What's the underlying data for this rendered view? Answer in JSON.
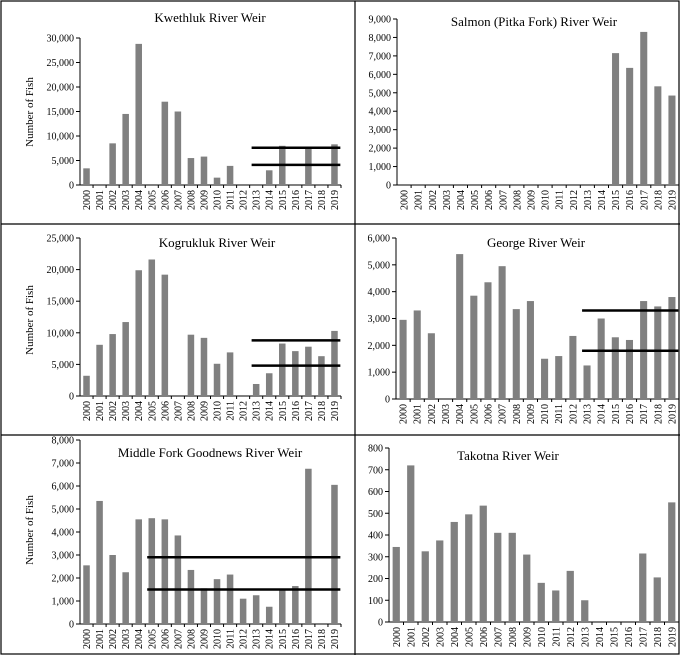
{
  "colors": {
    "bar": "#808080",
    "threshold": "#000000",
    "border": "#000000"
  },
  "years": [
    "2000",
    "2001",
    "2002",
    "2003",
    "2004",
    "2005",
    "2006",
    "2007",
    "2008",
    "2009",
    "2010",
    "2011",
    "2012",
    "2013",
    "2014",
    "2015",
    "2016",
    "2017",
    "2018",
    "2019"
  ],
  "chart_data": [
    {
      "type": "bar",
      "title": "Kwethluk River Weir",
      "ylabel": "Number of Fish",
      "ylim": [
        0,
        30000
      ],
      "yticks": [
        0,
        5000,
        10000,
        15000,
        20000,
        25000,
        30000
      ],
      "ytick_labels": [
        "0",
        "5,000",
        "10,000",
        "15,000",
        "20,000",
        "25,000",
        "30,000"
      ],
      "values": [
        3400,
        null,
        8500,
        14500,
        28800,
        null,
        17000,
        15000,
        5500,
        5800,
        1500,
        3900,
        null,
        null,
        3000,
        8000,
        null,
        7800,
        null,
        8300
      ],
      "thresholds": [
        {
          "value": 7600,
          "from": "2013",
          "to": "2019"
        },
        {
          "value": 4100,
          "from": "2013",
          "to": "2019"
        }
      ]
    },
    {
      "type": "bar",
      "title": "Salmon (Pitka Fork) River Weir",
      "ylabel": "",
      "ylim": [
        0,
        9000
      ],
      "yticks": [
        0,
        1000,
        2000,
        3000,
        4000,
        5000,
        6000,
        7000,
        8000,
        9000
      ],
      "ytick_labels": [
        "0",
        "1,000",
        "2,000",
        "3,000",
        "4,000",
        "5,000",
        "6,000",
        "7,000",
        "8,000",
        "9,000"
      ],
      "values": [
        null,
        null,
        null,
        null,
        null,
        null,
        null,
        null,
        null,
        null,
        null,
        null,
        null,
        null,
        null,
        7150,
        6350,
        8300,
        5350,
        4850
      ],
      "thresholds": []
    },
    {
      "type": "bar",
      "title": "Kogrukluk River Weir",
      "ylabel": "Number of Fish",
      "ylim": [
        0,
        25000
      ],
      "yticks": [
        0,
        5000,
        10000,
        15000,
        20000,
        25000
      ],
      "ytick_labels": [
        "0",
        "5,000",
        "10,000",
        "15,000",
        "20,000",
        "25,000"
      ],
      "values": [
        3200,
        8100,
        9800,
        11700,
        19900,
        21600,
        19200,
        null,
        9700,
        9200,
        5100,
        6900,
        null,
        1900,
        3600,
        8300,
        7100,
        7800,
        6300,
        10300
      ],
      "thresholds": [
        {
          "value": 8800,
          "from": "2013",
          "to": "2019"
        },
        {
          "value": 4800,
          "from": "2013",
          "to": "2019"
        }
      ]
    },
    {
      "type": "bar",
      "title": "George River Weir",
      "ylabel": "",
      "ylim": [
        0,
        6000
      ],
      "yticks": [
        0,
        1000,
        2000,
        3000,
        4000,
        5000,
        6000
      ],
      "ytick_labels": [
        "0",
        "1,000",
        "2,000",
        "3,000",
        "4,000",
        "5,000",
        "6,000"
      ],
      "values": [
        2950,
        3300,
        2450,
        null,
        5400,
        3850,
        4350,
        4950,
        3350,
        3650,
        1500,
        1600,
        2350,
        1250,
        3000,
        2300,
        2200,
        3650,
        3450,
        3800
      ],
      "thresholds": [
        {
          "value": 3300,
          "from": "2013",
          "to": "2019"
        },
        {
          "value": 1800,
          "from": "2013",
          "to": "2019"
        }
      ]
    },
    {
      "type": "bar",
      "title": "Middle Fork Goodnews River Weir",
      "ylabel": "Number of Fish",
      "ylim": [
        0,
        8000
      ],
      "yticks": [
        0,
        1000,
        2000,
        3000,
        4000,
        5000,
        6000,
        7000,
        8000
      ],
      "ytick_labels": [
        "0",
        "1,000",
        "2,000",
        "3,000",
        "4,000",
        "5,000",
        "6,000",
        "7,000",
        "8,000"
      ],
      "values": [
        2550,
        5350,
        3000,
        2250,
        4550,
        4600,
        4550,
        3850,
        2350,
        1550,
        1950,
        2150,
        1100,
        1250,
        750,
        1500,
        1650,
        6750,
        null,
        6050
      ],
      "thresholds": [
        {
          "value": 2900,
          "from": "2005",
          "to": "2019"
        },
        {
          "value": 1500,
          "from": "2005",
          "to": "2019"
        }
      ]
    },
    {
      "type": "bar",
      "title": "Takotna River Weir",
      "ylabel": "",
      "ylim": [
        0,
        800
      ],
      "yticks": [
        0,
        100,
        200,
        300,
        400,
        500,
        600,
        700,
        800
      ],
      "ytick_labels": [
        "0",
        "100",
        "200",
        "300",
        "400",
        "500",
        "600",
        "700",
        "800"
      ],
      "values": [
        345,
        720,
        325,
        375,
        460,
        495,
        535,
        410,
        410,
        310,
        180,
        145,
        235,
        100,
        null,
        null,
        null,
        315,
        205,
        550
      ],
      "thresholds": []
    }
  ]
}
